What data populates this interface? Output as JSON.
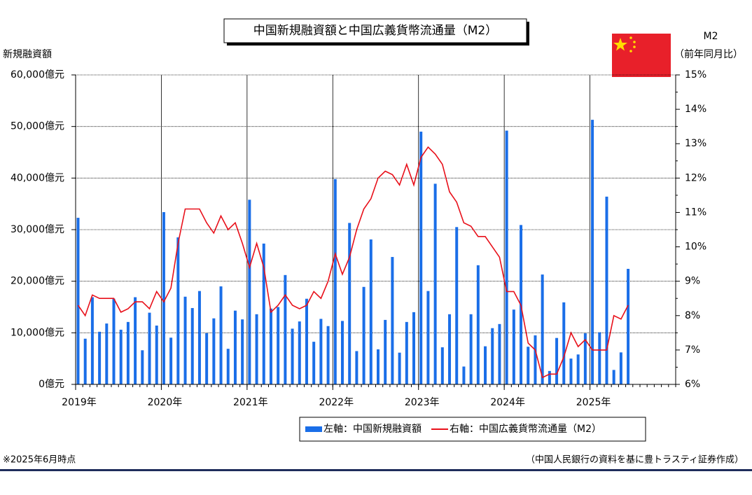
{
  "chart_data": {
    "type": "bar",
    "title": "中国新規融資額と中国広義貨幣流通量（M2）",
    "ylabel": "新規融資額",
    "y2label": "M2",
    "y2sublabel": "（前年同月比）",
    "note": "※2025年6月時点",
    "source": "（中国人民銀行の資料を基に豊トラスティ証券作成）",
    "categories": [
      "2019年",
      null,
      null,
      null,
      null,
      null,
      null,
      null,
      null,
      null,
      null,
      null,
      "2020年",
      null,
      null,
      null,
      null,
      null,
      null,
      null,
      null,
      null,
      null,
      null,
      "2021年",
      null,
      null,
      null,
      null,
      null,
      null,
      null,
      null,
      null,
      null,
      null,
      "2022年",
      null,
      null,
      null,
      null,
      null,
      null,
      null,
      null,
      null,
      null,
      null,
      "2023年",
      null,
      null,
      null,
      null,
      null,
      null,
      null,
      null,
      null,
      null,
      null,
      "2024年",
      null,
      null,
      null,
      null,
      null,
      null,
      null,
      null,
      null,
      null,
      null,
      "2025年",
      null,
      null,
      null,
      null,
      null,
      null,
      null,
      null,
      null,
      null,
      null
    ],
    "series": [
      {
        "name": "左軸：中国新規融資額",
        "type": "bar",
        "color": "#1a6ee8",
        "values": [
          32300,
          8858,
          16900,
          10200,
          11800,
          16600,
          10600,
          12100,
          16900,
          6613,
          13900,
          11400,
          33400,
          9057,
          28500,
          17000,
          14800,
          18100,
          9927,
          12800,
          19000,
          6898,
          14300,
          12600,
          35800,
          13600,
          27300,
          14700,
          15000,
          21200,
          10800,
          12200,
          16600,
          8262,
          12700,
          11300,
          39800,
          12300,
          31300,
          6454,
          18900,
          28100,
          6790,
          12500,
          24700,
          6152,
          12100,
          14000,
          49000,
          18100,
          38900,
          7188,
          13600,
          30500,
          3459,
          13600,
          23100,
          7384,
          10900,
          11700,
          49200,
          14500,
          30900,
          7300,
          9500,
          21300,
          2600,
          9000,
          15900,
          5000,
          5800,
          9900,
          51300,
          10100,
          36400,
          2800,
          6200,
          22400,
          null,
          null,
          null,
          null,
          null,
          null
        ]
      },
      {
        "name": "右軸：中国広義貨幣流通量（M2）",
        "type": "line",
        "axis": "y2",
        "color": "#e8101a",
        "values": [
          8.3,
          8.0,
          8.6,
          8.5,
          8.5,
          8.5,
          8.1,
          8.2,
          8.4,
          8.4,
          8.2,
          8.7,
          8.4,
          8.8,
          10.1,
          11.1,
          11.1,
          11.1,
          10.7,
          10.4,
          10.9,
          10.5,
          10.7,
          10.1,
          9.4,
          10.1,
          9.4,
          8.1,
          8.3,
          8.6,
          8.3,
          8.2,
          8.3,
          8.7,
          8.5,
          9.0,
          9.8,
          9.2,
          9.7,
          10.5,
          11.1,
          11.4,
          12.0,
          12.2,
          12.1,
          11.8,
          12.4,
          11.8,
          12.6,
          12.9,
          12.7,
          12.4,
          11.6,
          11.3,
          10.7,
          10.6,
          10.3,
          10.3,
          10.0,
          9.7,
          8.7,
          8.7,
          8.3,
          7.2,
          7.0,
          6.2,
          6.3,
          6.3,
          6.8,
          7.5,
          7.1,
          7.3,
          7.0,
          7.0,
          7.0,
          8.0,
          7.9,
          8.3,
          null,
          null,
          null,
          null,
          null,
          null
        ]
      }
    ],
    "ylim": [
      0,
      60000
    ],
    "yticks": [
      {
        "value": 0,
        "label": "0億元"
      },
      {
        "value": 10000,
        "label": "10,000億元"
      },
      {
        "value": 20000,
        "label": "20,000億元"
      },
      {
        "value": 30000,
        "label": "30,000億元"
      },
      {
        "value": 40000,
        "label": "40,000億元"
      },
      {
        "value": 50000,
        "label": "50,000億元"
      },
      {
        "value": 60000,
        "label": "60,000億元"
      }
    ],
    "y2lim": [
      6,
      15
    ],
    "y2ticks": [
      {
        "value": 6,
        "label": "6%"
      },
      {
        "value": 7,
        "label": "7%"
      },
      {
        "value": 8,
        "label": "8%"
      },
      {
        "value": 9,
        "label": "9%"
      },
      {
        "value": 10,
        "label": "10%"
      },
      {
        "value": 11,
        "label": "11%"
      },
      {
        "value": 12,
        "label": "12%"
      },
      {
        "value": 13,
        "label": "13%"
      },
      {
        "value": 14,
        "label": "14%"
      },
      {
        "value": 15,
        "label": "15%"
      }
    ],
    "grid": true
  }
}
